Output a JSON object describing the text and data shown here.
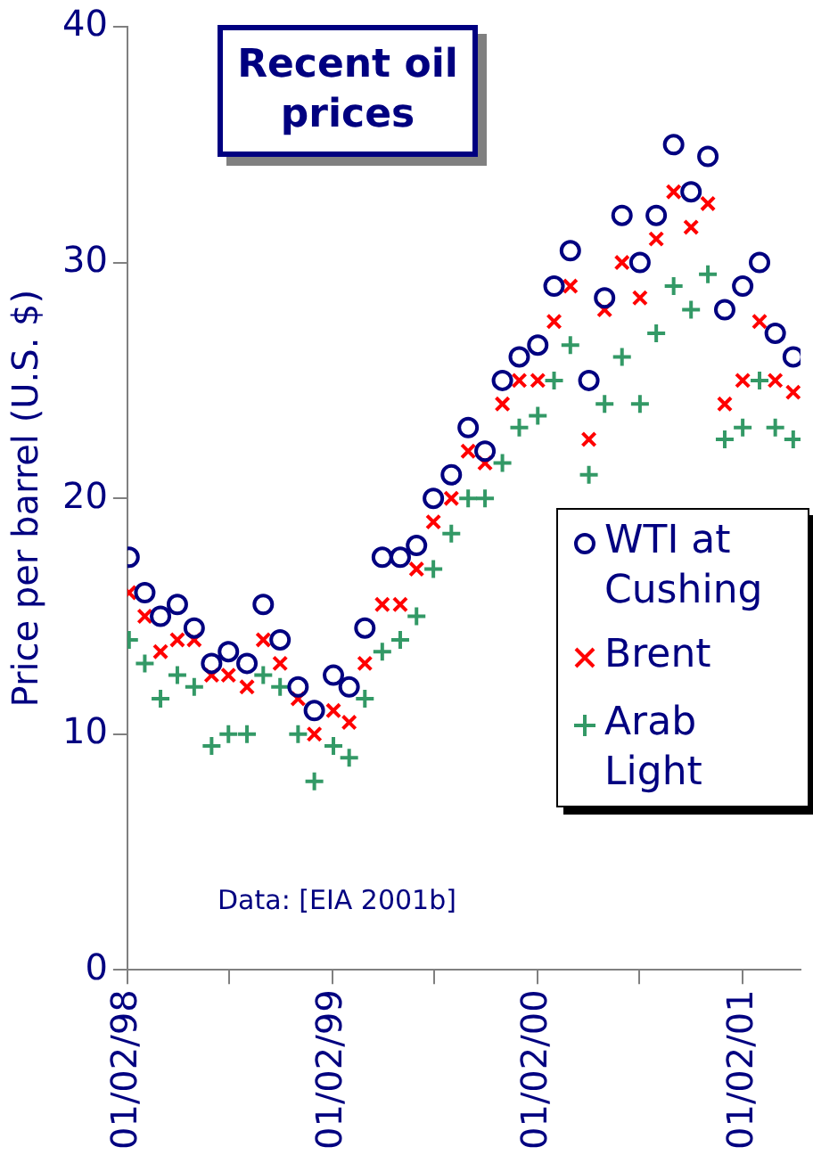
{
  "chart_data": {
    "type": "scatter",
    "title": "Recent oil prices",
    "ylabel": "Price per barrel (U.S. $)",
    "annotations": [
      "Data: [EIA 2001b]"
    ],
    "xlim": [
      "1998-01-02",
      "2001-04-15"
    ],
    "xticks": [
      {
        "value": "1998-01-02",
        "label": "01/02/98"
      },
      {
        "value": "1998-07-02",
        "label": null
      },
      {
        "value": "1999-01-02",
        "label": "01/02/99"
      },
      {
        "value": "1999-07-02",
        "label": null
      },
      {
        "value": "2000-01-02",
        "label": "01/02/00"
      },
      {
        "value": "2000-07-02",
        "label": null
      },
      {
        "value": "2001-01-02",
        "label": "01/02/01"
      }
    ],
    "ylim": [
      0,
      40
    ],
    "yticks": [
      0,
      10,
      20,
      30,
      40
    ],
    "grid": false,
    "legend": "bottom right",
    "x": [
      "1998-01-05",
      "1998-02-02",
      "1998-03-02",
      "1998-04-01",
      "1998-05-01",
      "1998-06-01",
      "1998-07-01",
      "1998-08-03",
      "1998-09-01",
      "1998-10-01",
      "1998-11-02",
      "1998-12-01",
      "1999-01-04",
      "1999-02-01",
      "1999-03-01",
      "1999-04-01",
      "1999-05-03",
      "1999-06-01",
      "1999-07-01",
      "1999-08-02",
      "1999-09-01",
      "1999-10-01",
      "1999-11-01",
      "1999-12-01",
      "2000-01-03",
      "2000-02-01",
      "2000-03-01",
      "2000-04-03",
      "2000-05-01",
      "2000-06-01",
      "2000-07-03",
      "2000-08-01",
      "2000-09-01",
      "2000-10-02",
      "2000-11-01",
      "2000-12-01",
      "2001-01-02",
      "2001-02-01",
      "2001-03-01",
      "2001-04-02"
    ],
    "series": [
      {
        "name": "WTI at Cushing",
        "color": "#000080",
        "marker": "circle",
        "values": [
          17.5,
          16,
          15,
          15.5,
          14.5,
          13,
          13.5,
          13,
          15.5,
          14,
          12,
          11,
          12.5,
          12,
          14.5,
          17.5,
          17.5,
          18,
          20,
          21,
          23,
          22,
          25,
          26,
          26.5,
          29,
          30.5,
          25,
          28.5,
          32,
          30,
          32,
          35,
          33,
          34.5,
          28,
          29,
          30,
          27,
          26
        ]
      },
      {
        "name": "Brent",
        "color": "#ff0000",
        "marker": "x",
        "values": [
          16,
          15,
          13.5,
          14,
          14,
          12.5,
          12.5,
          12,
          14,
          13,
          11.5,
          10,
          11,
          10.5,
          13,
          15.5,
          15.5,
          17,
          19,
          20,
          22,
          21.5,
          24,
          25,
          25,
          27.5,
          29,
          22.5,
          28,
          30,
          28.5,
          31,
          33,
          31.5,
          32.5,
          24,
          25,
          27.5,
          25,
          24.5
        ]
      },
      {
        "name": "Arab Light",
        "color": "#339966",
        "marker": "cross",
        "values": [
          14,
          13,
          11.5,
          12.5,
          12,
          9.5,
          10,
          10,
          12.5,
          12,
          10,
          8,
          9.5,
          9,
          11.5,
          13.5,
          14,
          15,
          17,
          18.5,
          20,
          20,
          21.5,
          23,
          23.5,
          25,
          26.5,
          21,
          24,
          26,
          24,
          27,
          29,
          28,
          29.5,
          22.5,
          23,
          25,
          23,
          22.5
        ]
      }
    ]
  }
}
